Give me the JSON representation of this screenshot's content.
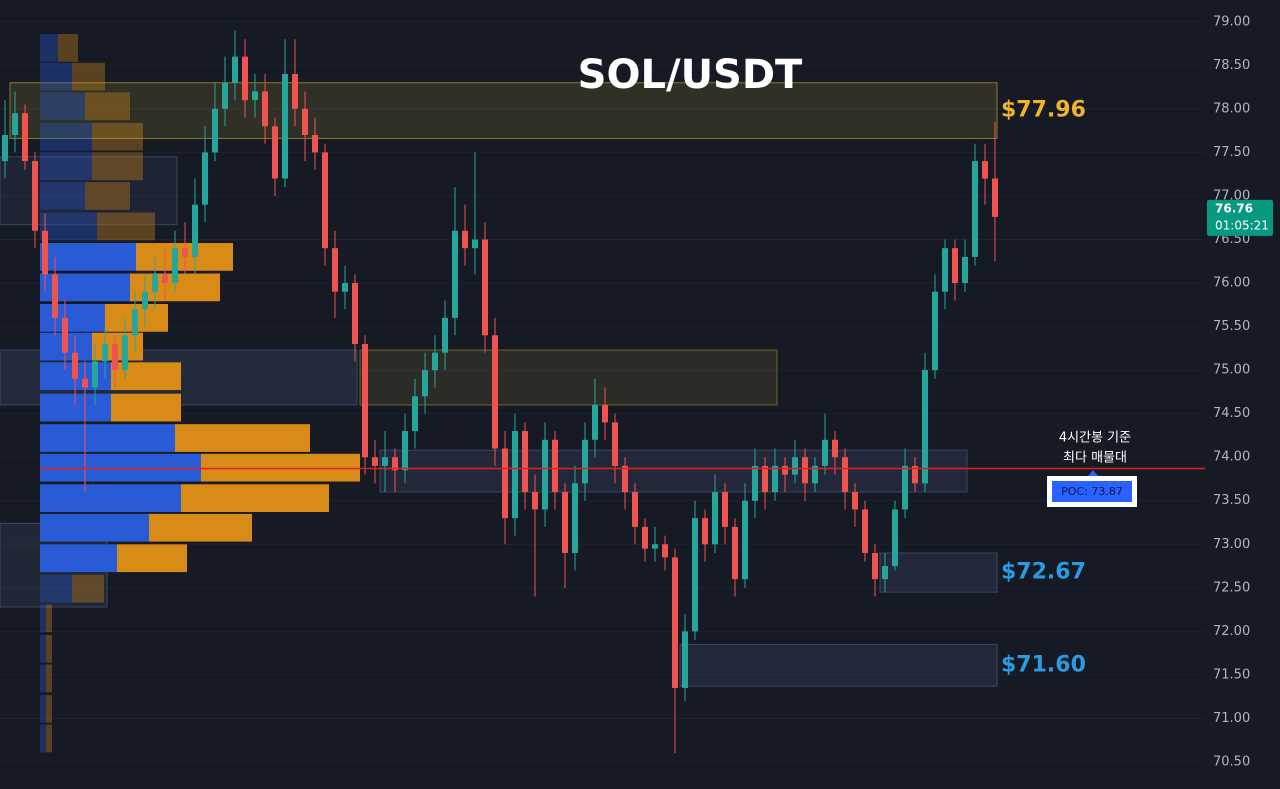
{
  "chart_data": {
    "type": "candlestick",
    "title": "SOL/USDT",
    "ylim": [
      70.19,
      79.25
    ],
    "yticks": [
      {
        "value": 70.5,
        "label": "70.50"
      },
      {
        "value": 71,
        "label": "71.00"
      },
      {
        "value": 71.5,
        "label": "71.50"
      },
      {
        "value": 72,
        "label": "72.00"
      },
      {
        "value": 72.5,
        "label": "72.50"
      },
      {
        "value": 73,
        "label": "73.00"
      },
      {
        "value": 73.5,
        "label": "73.50"
      },
      {
        "value": 74,
        "label": "74.00"
      },
      {
        "value": 74.5,
        "label": "74.50"
      },
      {
        "value": 75,
        "label": "75.00"
      },
      {
        "value": 75.5,
        "label": "75.50"
      },
      {
        "value": 76,
        "label": "76.00"
      },
      {
        "value": 76.5,
        "label": "76.50"
      },
      {
        "value": 77,
        "label": "77.00"
      },
      {
        "value": 77.5,
        "label": "77.50"
      },
      {
        "value": 78,
        "label": "78.00"
      },
      {
        "value": 78.5,
        "label": "78.50"
      },
      {
        "value": 79,
        "label": "79.00"
      }
    ],
    "grid": true,
    "colors": {
      "up": "#26a69a",
      "down": "#ef5350"
    },
    "candles": [
      [
        77.4,
        78.1,
        77.2,
        77.7
      ],
      [
        77.7,
        78.2,
        77.5,
        77.95
      ],
      [
        77.95,
        78.05,
        77.3,
        77.4
      ],
      [
        77.4,
        77.5,
        76.4,
        76.6
      ],
      [
        76.6,
        76.8,
        75.9,
        76.1
      ],
      [
        76.1,
        76.3,
        75.4,
        75.6
      ],
      [
        75.6,
        75.8,
        75.0,
        75.2
      ],
      [
        75.2,
        75.4,
        74.6,
        74.9
      ],
      [
        74.9,
        75.1,
        73.6,
        74.8
      ],
      [
        74.8,
        75.3,
        74.6,
        75.1
      ],
      [
        75.1,
        75.5,
        74.9,
        75.3
      ],
      [
        75.3,
        75.4,
        74.8,
        75.0
      ],
      [
        75.0,
        75.6,
        74.9,
        75.4
      ],
      [
        75.4,
        75.9,
        75.2,
        75.7
      ],
      [
        75.7,
        76.1,
        75.5,
        75.9
      ],
      [
        75.9,
        76.3,
        75.7,
        76.1
      ],
      [
        76.1,
        76.4,
        75.8,
        76.0
      ],
      [
        76.0,
        76.6,
        75.9,
        76.4
      ],
      [
        76.4,
        76.7,
        76.1,
        76.3
      ],
      [
        76.3,
        77.2,
        76.1,
        76.9
      ],
      [
        76.9,
        77.8,
        76.7,
        77.5
      ],
      [
        77.5,
        78.3,
        77.4,
        78.0
      ],
      [
        78.0,
        78.6,
        77.8,
        78.3
      ],
      [
        78.3,
        78.9,
        78.1,
        78.6
      ],
      [
        78.6,
        78.8,
        77.9,
        78.1
      ],
      [
        78.1,
        78.4,
        77.9,
        78.2
      ],
      [
        78.2,
        78.4,
        77.6,
        77.8
      ],
      [
        77.8,
        77.9,
        77.0,
        77.2
      ],
      [
        77.2,
        78.8,
        77.1,
        78.4
      ],
      [
        78.4,
        78.8,
        77.8,
        78.0
      ],
      [
        78.0,
        78.2,
        77.4,
        77.7
      ],
      [
        77.7,
        77.9,
        77.3,
        77.5
      ],
      [
        77.5,
        77.6,
        76.2,
        76.4
      ],
      [
        76.4,
        76.6,
        75.6,
        75.9
      ],
      [
        75.9,
        76.2,
        75.7,
        76.0
      ],
      [
        76.0,
        76.1,
        75.1,
        75.3
      ],
      [
        75.3,
        75.4,
        73.8,
        74.0
      ],
      [
        74.0,
        74.2,
        73.7,
        73.9
      ],
      [
        73.9,
        74.3,
        73.6,
        74.0
      ],
      [
        74.0,
        74.1,
        73.6,
        73.85
      ],
      [
        73.85,
        74.5,
        73.7,
        74.3
      ],
      [
        74.3,
        74.9,
        74.1,
        74.7
      ],
      [
        74.7,
        75.2,
        74.5,
        75.0
      ],
      [
        75.0,
        75.4,
        74.8,
        75.2
      ],
      [
        75.2,
        75.8,
        75.0,
        75.6
      ],
      [
        75.6,
        77.1,
        75.4,
        76.6
      ],
      [
        76.6,
        76.9,
        76.2,
        76.4
      ],
      [
        76.4,
        77.5,
        76.1,
        76.5
      ],
      [
        76.5,
        76.7,
        75.2,
        75.4
      ],
      [
        75.4,
        75.6,
        73.9,
        74.1
      ],
      [
        74.1,
        74.3,
        73.0,
        73.3
      ],
      [
        73.3,
        74.5,
        73.1,
        74.3
      ],
      [
        74.3,
        74.4,
        73.4,
        73.6
      ],
      [
        73.6,
        73.8,
        72.4,
        73.4
      ],
      [
        73.4,
        74.4,
        73.2,
        74.2
      ],
      [
        74.2,
        74.3,
        73.4,
        73.6
      ],
      [
        73.6,
        73.7,
        72.5,
        72.9
      ],
      [
        72.9,
        73.9,
        72.7,
        73.7
      ],
      [
        73.7,
        74.4,
        73.5,
        74.2
      ],
      [
        74.2,
        74.9,
        74.0,
        74.6
      ],
      [
        74.6,
        74.8,
        74.2,
        74.4
      ],
      [
        74.4,
        74.5,
        73.7,
        73.9
      ],
      [
        73.9,
        74.0,
        73.4,
        73.6
      ],
      [
        73.6,
        73.7,
        73.0,
        73.2
      ],
      [
        73.2,
        73.3,
        72.8,
        72.95
      ],
      [
        72.95,
        73.2,
        72.8,
        73.0
      ],
      [
        73.0,
        73.1,
        72.7,
        72.85
      ],
      [
        72.85,
        72.95,
        70.6,
        71.35
      ],
      [
        71.35,
        72.2,
        71.2,
        72.0
      ],
      [
        72.0,
        73.5,
        71.9,
        73.3
      ],
      [
        73.3,
        73.4,
        72.8,
        73.0
      ],
      [
        73.0,
        73.8,
        72.9,
        73.6
      ],
      [
        73.6,
        73.7,
        73.0,
        73.2
      ],
      [
        73.2,
        73.3,
        72.4,
        72.6
      ],
      [
        72.6,
        73.7,
        72.5,
        73.5
      ],
      [
        73.5,
        74.1,
        73.3,
        73.9
      ],
      [
        73.9,
        74.0,
        73.4,
        73.6
      ],
      [
        73.6,
        74.1,
        73.5,
        73.9
      ],
      [
        73.9,
        74.0,
        73.6,
        73.8
      ],
      [
        73.8,
        74.2,
        73.7,
        74.0
      ],
      [
        74.0,
        74.1,
        73.5,
        73.7
      ],
      [
        73.7,
        74.0,
        73.6,
        73.9
      ],
      [
        73.9,
        74.5,
        73.8,
        74.2
      ],
      [
        74.2,
        74.3,
        73.8,
        74.0
      ],
      [
        74.0,
        74.1,
        73.4,
        73.6
      ],
      [
        73.6,
        73.7,
        73.2,
        73.4
      ],
      [
        73.4,
        73.5,
        72.8,
        72.9
      ],
      [
        72.9,
        73.0,
        72.4,
        72.6
      ],
      [
        72.6,
        72.9,
        72.45,
        72.75
      ],
      [
        72.75,
        73.5,
        72.7,
        73.4
      ],
      [
        73.4,
        74.1,
        73.3,
        73.9
      ],
      [
        73.9,
        74.0,
        73.6,
        73.7
      ],
      [
        73.7,
        75.2,
        73.6,
        75.0
      ],
      [
        75.0,
        76.1,
        74.9,
        75.9
      ],
      [
        75.9,
        76.5,
        75.7,
        76.4
      ],
      [
        76.4,
        76.5,
        75.8,
        76.0
      ],
      [
        76.0,
        76.5,
        75.9,
        76.3
      ],
      [
        76.3,
        77.6,
        76.2,
        77.4
      ],
      [
        77.4,
        77.6,
        76.9,
        77.2
      ],
      [
        77.2,
        77.85,
        76.25,
        76.76
      ]
    ],
    "profile": {
      "prices": [
        78.7,
        78.37,
        78.03,
        77.68,
        77.34,
        77.0,
        76.65,
        76.3,
        75.95,
        75.6,
        75.27,
        74.93,
        74.57,
        74.22,
        73.88,
        73.53,
        73.19,
        72.84,
        72.49,
        72.15,
        71.8,
        71.46,
        71.11,
        70.77
      ],
      "buy": [
        18,
        32,
        45,
        52,
        52,
        45,
        57,
        96,
        90,
        65,
        52,
        71,
        71,
        135,
        161,
        141,
        109,
        77,
        32,
        6,
        6,
        6,
        6,
        6
      ],
      "sell": [
        20,
        33,
        45,
        51,
        51,
        45,
        58,
        97,
        90,
        63,
        51,
        70,
        70,
        135,
        159,
        148,
        103,
        70,
        32,
        6,
        6,
        6,
        6,
        6
      ],
      "buy_color": "#2a5bd7",
      "sell_color": "#d98b17",
      "value_area": [
        72.67,
        76.47
      ]
    },
    "zones": [
      {
        "top": 78.3,
        "bottom": 77.66,
        "start": 1,
        "end": 99,
        "fill": "rgba(160,140,50,0.20)",
        "stroke": "#8a7a2a",
        "label": "$77.96",
        "label_color": "#f0b429"
      },
      {
        "top": 77.45,
        "bottom": 76.67,
        "start": 0,
        "end": 17,
        "fill": "rgba(70,85,120,0.18)",
        "stroke": "#3a4660"
      },
      {
        "top": 75.23,
        "bottom": 74.6,
        "start": 0,
        "end": 35,
        "fill": "rgba(70,85,120,0.28)",
        "stroke": "#3a4660"
      },
      {
        "top": 75.23,
        "bottom": 74.6,
        "start": 36,
        "end": 77,
        "fill": "rgba(160,140,50,0.16)",
        "stroke": "#6e6428"
      },
      {
        "top": 74.08,
        "bottom": 73.6,
        "start": 38,
        "end": 96,
        "fill": "rgba(70,85,120,0.25)",
        "stroke": "#3a4660"
      },
      {
        "top": 73.24,
        "bottom": 72.28,
        "start": 0,
        "end": 10,
        "fill": "rgba(70,85,120,0.22)",
        "stroke": "#3a4660"
      },
      {
        "top": 72.9,
        "bottom": 72.45,
        "start": 88,
        "end": 99,
        "fill": "rgba(70,85,120,0.25)",
        "stroke": "#3a4660",
        "label": "$72.67",
        "label_color": "#2a9be0"
      },
      {
        "top": 71.85,
        "bottom": 71.37,
        "start": 68,
        "end": 99,
        "fill": "rgba(70,85,120,0.25)",
        "stroke": "#3a4660",
        "label": "$71.60",
        "label_color": "#2a9be0"
      }
    ],
    "poc": {
      "value": 73.87,
      "label": "POC: 73.87",
      "color": "#e41e1e",
      "note": [
        "4시간봉 기준",
        "최다 매물대"
      ]
    },
    "last_price": 76.76,
    "countdown": "01:05:21"
  }
}
